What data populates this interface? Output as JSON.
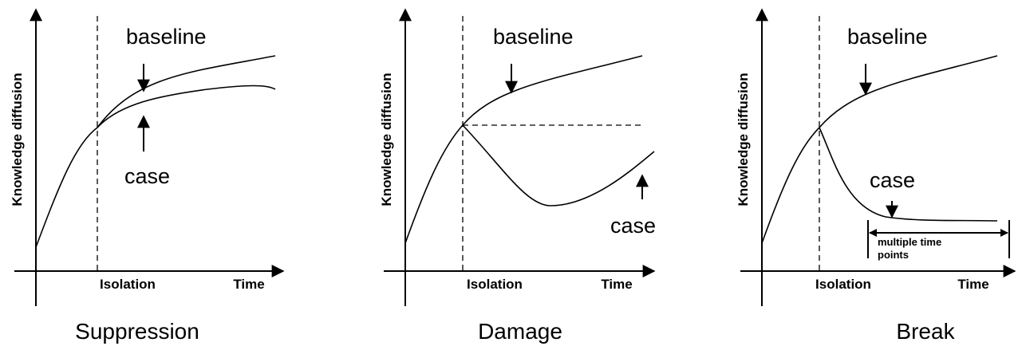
{
  "panels": [
    {
      "title": "Suppression",
      "y_label": "Knowledge diffusion",
      "x_labels": [
        "Isolation",
        "Time"
      ],
      "annotations": [
        "baseline",
        "case"
      ]
    },
    {
      "title": "Damage",
      "y_label": "Knowledge diffusion",
      "x_labels": [
        "Isolation",
        "Time"
      ],
      "annotations": [
        "baseline",
        "case"
      ]
    },
    {
      "title": "Break",
      "y_label": "Knowledge diffusion",
      "x_labels": [
        "Isolation",
        "Time"
      ],
      "annotations": [
        "baseline",
        "case"
      ],
      "bracket_label": "multiple time points"
    }
  ]
}
